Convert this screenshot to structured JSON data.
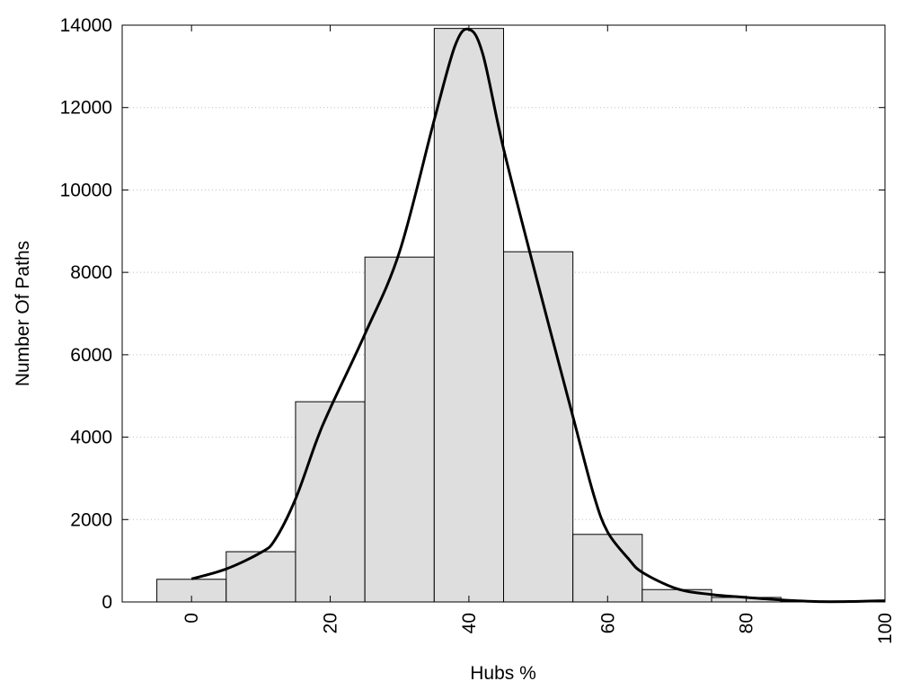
{
  "chart_data": {
    "type": "bar",
    "xlabel": "Hubs %",
    "ylabel": "Number Of Paths",
    "xlim": [
      -10,
      100
    ],
    "ylim": [
      0,
      14000
    ],
    "xticks": [
      "0",
      "20",
      "40",
      "60",
      "80",
      "100"
    ],
    "yticks": [
      "0",
      "2000",
      "4000",
      "6000",
      "8000",
      "10000",
      "12000",
      "14000"
    ],
    "grid": "horizontal dotted",
    "colors": {
      "bar_fill": "#dedede",
      "bar_edge": "#000000",
      "curve": "#000000"
    },
    "bins": [
      {
        "x_start": -5,
        "x_end": 5,
        "value": 550
      },
      {
        "x_start": 5,
        "x_end": 15,
        "value": 1220
      },
      {
        "x_start": 15,
        "x_end": 25,
        "value": 4860
      },
      {
        "x_start": 25,
        "x_end": 35,
        "value": 8370
      },
      {
        "x_start": 35,
        "x_end": 45,
        "value": 13920
      },
      {
        "x_start": 45,
        "x_end": 55,
        "value": 8500
      },
      {
        "x_start": 55,
        "x_end": 65,
        "value": 1640
      },
      {
        "x_start": 65,
        "x_end": 75,
        "value": 300
      },
      {
        "x_start": 75,
        "x_end": 85,
        "value": 110
      },
      {
        "x_start": 85,
        "x_end": 95,
        "value": 20
      }
    ],
    "curve": {
      "x": [
        0,
        5,
        10,
        12,
        15,
        18,
        20,
        25,
        30,
        35,
        38,
        40,
        42,
        45,
        50,
        55,
        58,
        60,
        63,
        65,
        70,
        75,
        80,
        85,
        90,
        95,
        100
      ],
      "y": [
        560,
        800,
        1200,
        1500,
        2500,
        3900,
        4700,
        6500,
        8500,
        11700,
        13500,
        13900,
        13300,
        11000,
        7700,
        4500,
        2600,
        1700,
        1050,
        720,
        320,
        180,
        110,
        50,
        10,
        10,
        30
      ]
    }
  }
}
